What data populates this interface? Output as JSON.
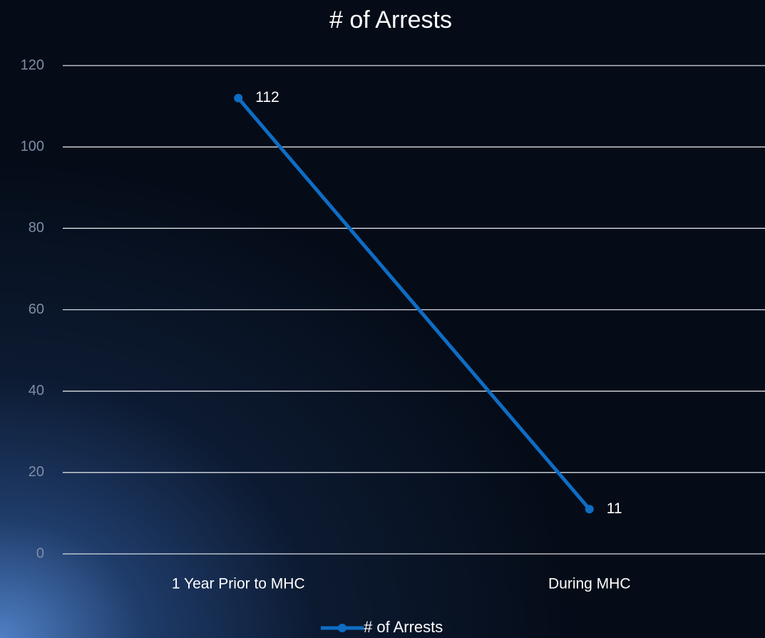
{
  "chart_data": {
    "type": "line",
    "title": "# of Arrests",
    "categories": [
      "1 Year Prior to MHC",
      "During MHC"
    ],
    "series": [
      {
        "name": "# of Arrests",
        "color": "#0e6dc4",
        "values": [
          112,
          11
        ]
      }
    ],
    "ylim": [
      0,
      120
    ],
    "yticks": [
      0,
      20,
      40,
      60,
      80,
      100,
      120
    ],
    "grid": true,
    "legend": "bottom"
  }
}
